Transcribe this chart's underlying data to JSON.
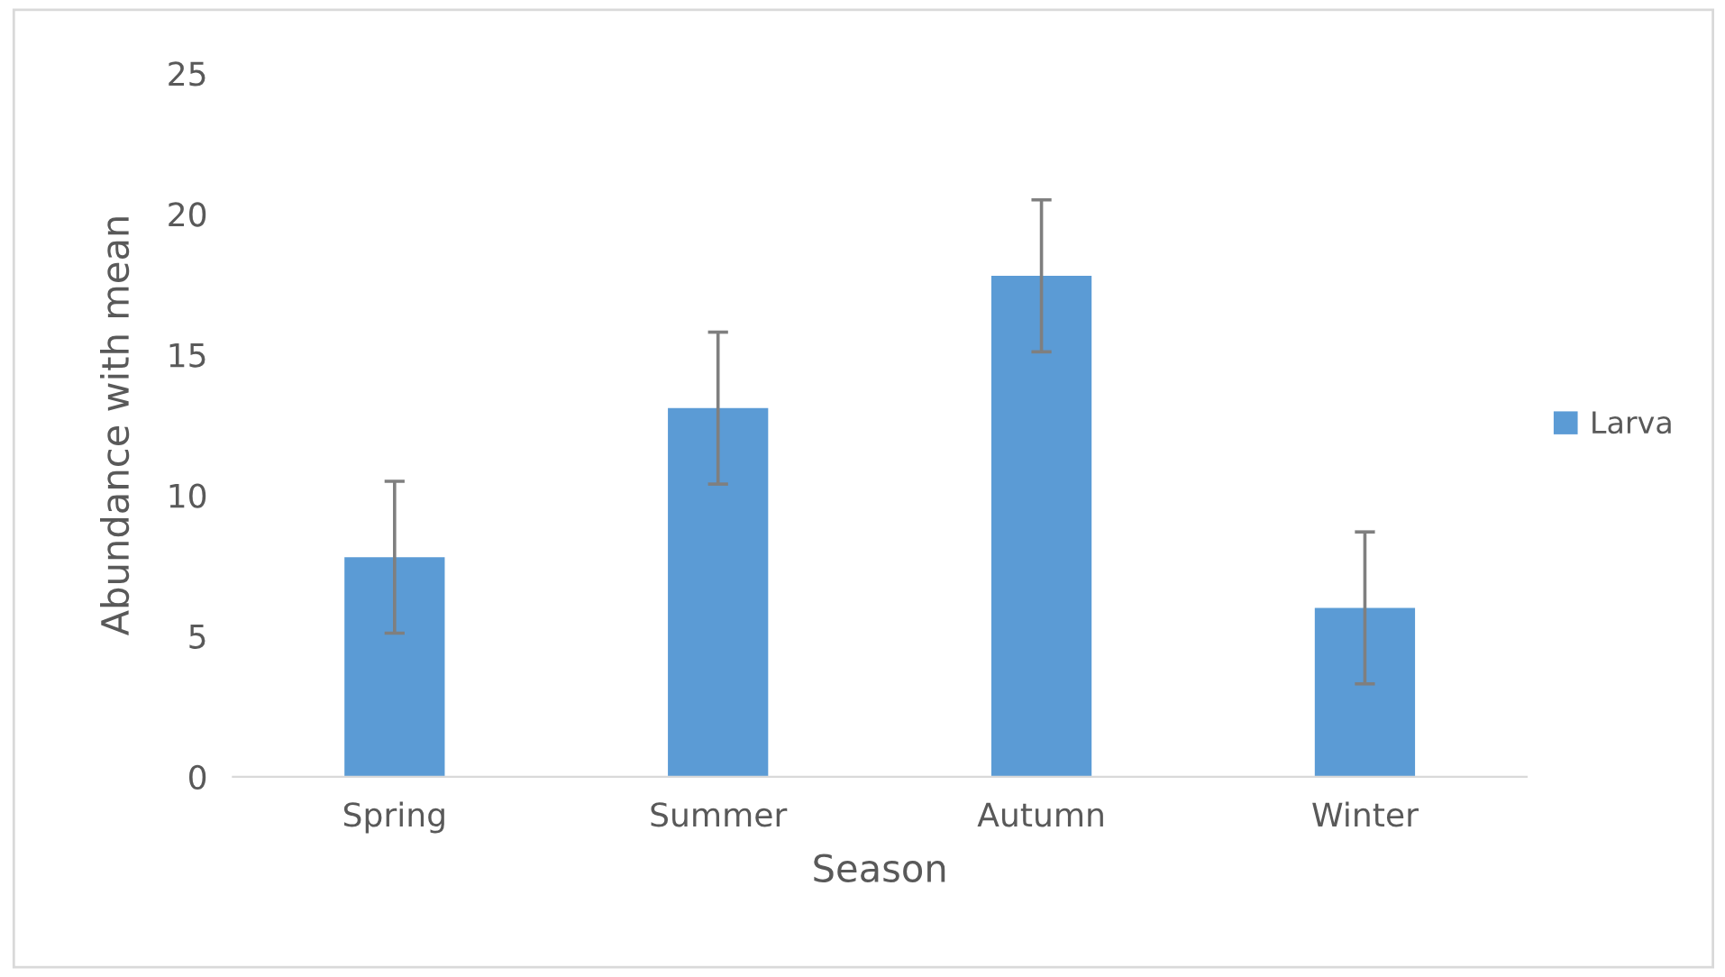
{
  "chart_data": {
    "type": "bar",
    "xlabel": "Season",
    "ylabel": "Abundance with mean",
    "categories": [
      "Spring",
      "Summer",
      "Autumn",
      "Winter"
    ],
    "series": [
      {
        "name": "Larva",
        "color": "#5b9bd5",
        "values": [
          7.8,
          13.1,
          17.8,
          6.0
        ],
        "errors": [
          2.7,
          2.7,
          2.7,
          2.7
        ]
      }
    ],
    "ylim": [
      0,
      25
    ],
    "yticks": [
      0,
      5,
      10,
      15,
      20,
      25
    ],
    "grid": false,
    "legend": "right"
  }
}
